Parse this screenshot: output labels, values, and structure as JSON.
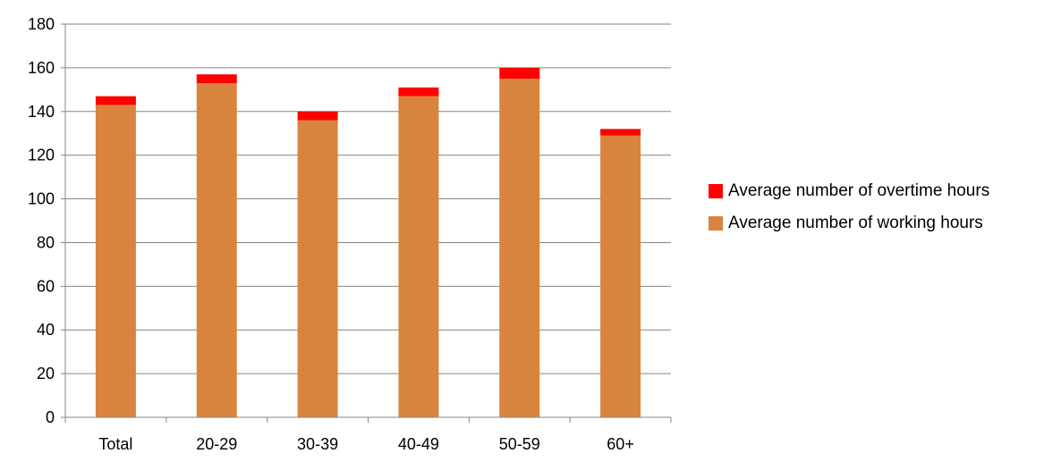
{
  "chart_data": {
    "type": "bar",
    "stacked": true,
    "categories": [
      "Total",
      "20-29",
      "30-39",
      "40-49",
      "50-59",
      "60+"
    ],
    "series": [
      {
        "name": "Average number of working hours",
        "color": "#D9843E",
        "values": [
          143,
          153,
          136,
          147,
          155,
          129
        ]
      },
      {
        "name": "Average number of overtime hours",
        "color": "#FF0000",
        "values": [
          4,
          4,
          4,
          4,
          5,
          3
        ]
      }
    ],
    "ylim": [
      0,
      180
    ],
    "yticks": [
      0,
      20,
      40,
      60,
      80,
      100,
      120,
      140,
      160,
      180
    ],
    "grid": true,
    "legend_position": "right"
  }
}
